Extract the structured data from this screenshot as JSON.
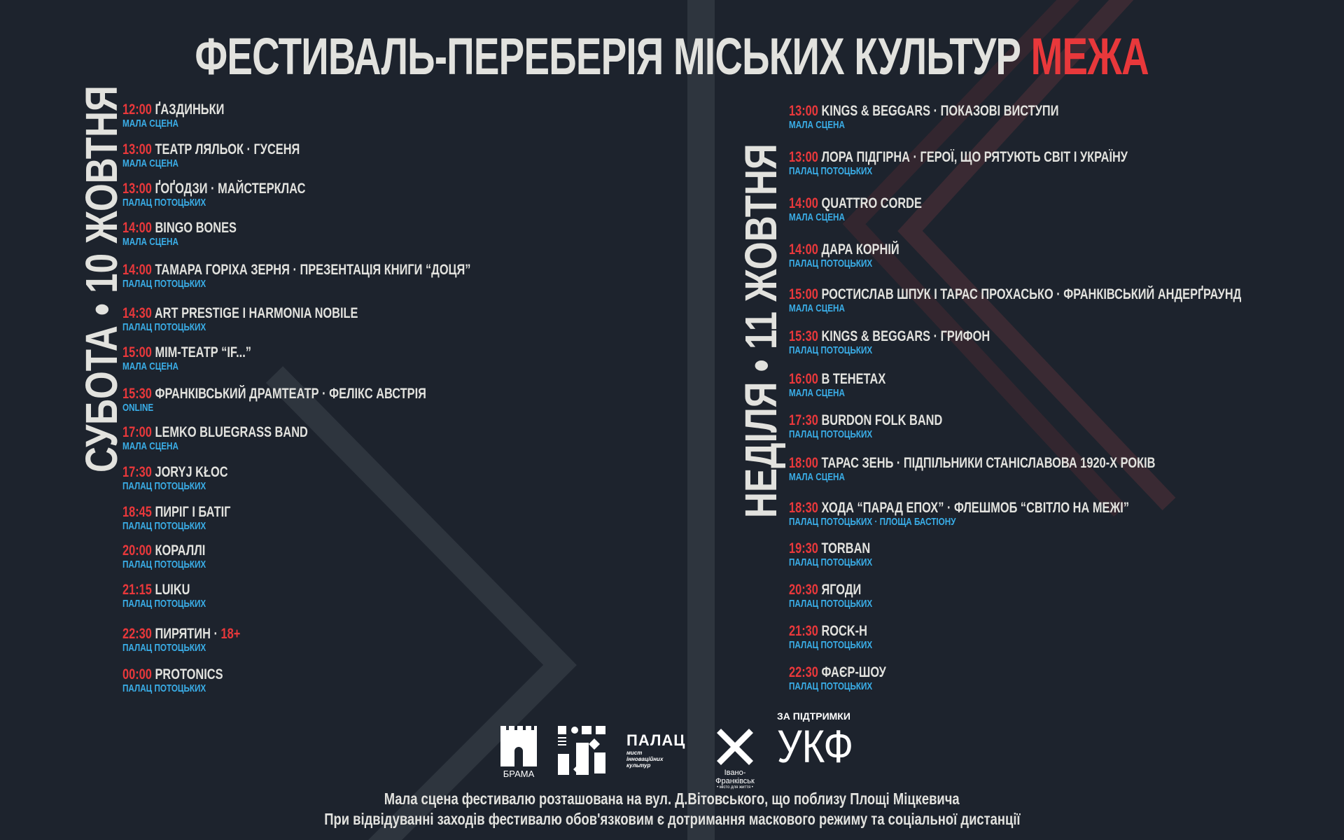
{
  "title": {
    "main": "ФЕСТИВАЛЬ-ПЕРЕБЕРІЯ МІСЬКИХ КУЛЬТУР",
    "accent": "МЕЖА"
  },
  "colors": {
    "background": "#1d232d",
    "time": "#e8383b",
    "venue": "#3aaee8",
    "text": "#e2e2de",
    "stripe": "#2e353e"
  },
  "saturday": {
    "heading": "СУБОТА • 10 ЖОВТНЯ",
    "events": [
      {
        "time": "12:00",
        "title": "ҐАЗДИНЬКИ",
        "venue": "МАЛА СЦЕНА"
      },
      {
        "time": "13:00",
        "title": "ТЕАТР ЛЯЛЬОК · ГУСЕНЯ",
        "venue": "МАЛА СЦЕНА"
      },
      {
        "time": "13:00",
        "title": "ҐОҐОДЗИ · МАЙСТЕРКЛАС",
        "venue": "ПАЛАЦ ПОТОЦЬКИХ"
      },
      {
        "time": "14:00",
        "title": "BINGO BONES",
        "venue": "МАЛА СЦЕНА"
      },
      {
        "time": "14:00",
        "title": "ТАМАРА ГОРІХА ЗЕРНЯ · ПРЕЗЕНТАЦІЯ КНИГИ “ДОЦЯ”",
        "venue": "ПАЛАЦ ПОТОЦЬКИХ"
      },
      {
        "time": "14:30",
        "title": "ART PRESTIGE І HARMONIA NOBILE",
        "venue": "ПАЛАЦ ПОТОЦЬКИХ"
      },
      {
        "time": "15:00",
        "title": "МІМ-ТЕАТР “IF...”",
        "venue": "МАЛА СЦЕНА"
      },
      {
        "time": "15:30",
        "title": "ФРАНКІВСЬКИЙ ДРАМТЕАТР · ФЕЛІКС АВСТРІЯ",
        "venue": "ONLINE"
      },
      {
        "time": "17:00",
        "title": "LEMKO BLUEGRASS BAND",
        "venue": "МАЛА СЦЕНА"
      },
      {
        "time": "17:30",
        "title": "JORYJ KŁOC",
        "venue": "ПАЛАЦ ПОТОЦЬКИХ"
      },
      {
        "time": "18:45",
        "title": "ПИРІГ І БАТІГ",
        "venue": "ПАЛАЦ ПОТОЦЬКИХ"
      },
      {
        "time": "20:00",
        "title": "КОРАЛЛІ",
        "venue": "ПАЛАЦ ПОТОЦЬКИХ"
      },
      {
        "time": "21:15",
        "title": "LUIKU",
        "venue": "ПАЛАЦ ПОТОЦЬКИХ"
      },
      {
        "time": "22:30",
        "title": "ПИРЯТИН ·",
        "badge": "18+",
        "venue": "ПАЛАЦ ПОТОЦЬКИХ"
      },
      {
        "time": "00:00",
        "title": "PROTONICS",
        "venue": "ПАЛАЦ ПОТОЦЬКИХ"
      }
    ]
  },
  "sunday": {
    "heading": "НЕДІЛЯ • 11 ЖОВТНЯ",
    "events": [
      {
        "time": "13:00",
        "title": "KINGS & BEGGARS · ПОКАЗОВІ ВИСТУПИ",
        "venue": "МАЛА СЦЕНА"
      },
      {
        "time": "13:00",
        "title": "ЛОРА ПІДГІРНА · ГЕРОЇ, ЩО РЯТУЮТЬ СВІТ І УКРАЇНУ",
        "venue": "ПАЛАЦ ПОТОЦЬКИХ"
      },
      {
        "time": "14:00",
        "title": "QUATTRO CORDE",
        "venue": "МАЛА СЦЕНА"
      },
      {
        "time": "14:00",
        "title": "ДАРА КОРНІЙ",
        "venue": "ПАЛАЦ ПОТОЦЬКИХ"
      },
      {
        "time": "15:00",
        "title": "РОСТИСЛАВ ШПУК І ТАРАС ПРОХАСЬКО · ФРАНКІВСЬКИЙ АНДЕРҐРАУНД",
        "venue": "МАЛА СЦЕНА"
      },
      {
        "time": "15:30",
        "title": "KINGS & BEGGARS · ГРИФОН",
        "venue": "ПАЛАЦ ПОТОЦЬКИХ"
      },
      {
        "time": "16:00",
        "title": "В ТЕНЕТАХ",
        "venue": "МАЛА СЦЕНА"
      },
      {
        "time": "17:30",
        "title": "BURDON FOLK BAND",
        "venue": "ПАЛАЦ ПОТОЦЬКИХ"
      },
      {
        "time": "18:00",
        "title": "ТАРАС ЗЕНЬ · ПІДПІЛЬНИКИ СТАНІСЛАВОВА 1920-Х РОКІВ",
        "venue": "МАЛА СЦЕНА"
      },
      {
        "time": "18:30",
        "title": "ХОДА “ПАРАД ЕПОХ” · ФЛЕШМОБ “СВІТЛО НА МЕЖІ”",
        "venue": "ПАЛАЦ ПОТОЦЬКИХ · ПЛОЩА БАСТІОНУ"
      },
      {
        "time": "19:30",
        "title": "TORBAN",
        "venue": "ПАЛАЦ ПОТОЦЬКИХ"
      },
      {
        "time": "20:30",
        "title": "ЯГОДИ",
        "venue": "ПАЛАЦ ПОТОЦЬКИХ"
      },
      {
        "time": "21:30",
        "title": "ROCK-H",
        "venue": "ПАЛАЦ ПОТОЦЬКИХ"
      },
      {
        "time": "22:30",
        "title": "ФАЄР-ШОУ",
        "venue": "ПАЛАЦ ПОТОЦЬКИХ"
      }
    ]
  },
  "logos": {
    "brama": "БРАМА",
    "palac": "ПАЛАЦ",
    "palac_sub": "мист інноваційних культур",
    "city": "Івано-Франківськ",
    "city_sub": "• місто для життя •",
    "support_label": "ЗА ПІДТРИМКИ",
    "ukf": "УКФ"
  },
  "footer": {
    "line1": "Мала сцена фестивалю розташована на вул. Д.Вітовського, що поблизу Площі Міцкевича",
    "line2": "При відвідуванні заходів фестивалю обов'язковим є дотримання маскового режиму та соціальної дистанції"
  }
}
